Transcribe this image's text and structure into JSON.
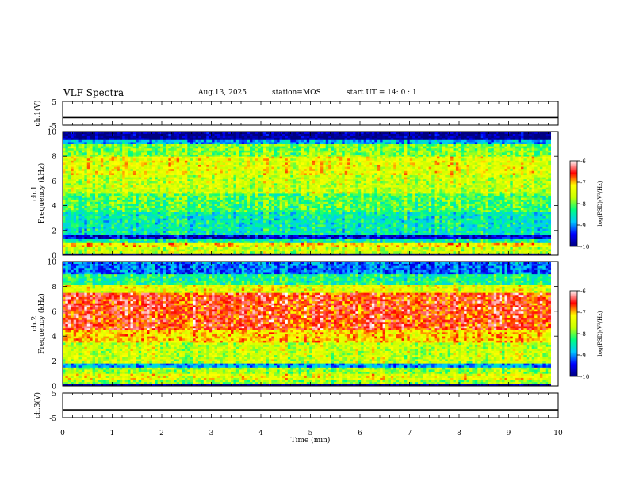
{
  "header": {
    "title": "VLF Spectra",
    "date": "Aug.13, 2025",
    "station": "station=MOS",
    "start": "start  UT =   14: 0  : 1"
  },
  "chart_data": [
    {
      "type": "line",
      "panel": "ch1-voltage",
      "ylabel": "ch.1(V)",
      "ylim": [
        -5,
        5
      ],
      "yticks": [
        "5",
        "-5"
      ],
      "x": [
        0,
        10
      ],
      "values": [
        -1.8,
        -1.8
      ],
      "series_color": "#000000"
    },
    {
      "type": "heatmap",
      "panel": "ch1-spectrogram",
      "ylabel_lines": [
        "ch.1",
        "Frequency  (kHz)"
      ],
      "ylim": [
        0,
        10
      ],
      "yticks": [
        "0",
        "2",
        "4",
        "6",
        "8",
        "10"
      ],
      "xlim": [
        0,
        9.85
      ],
      "bands": [
        {
          "f0": 0.0,
          "f1": 0.15,
          "level": -10.0
        },
        {
          "f0": 0.15,
          "f1": 0.6,
          "level": -7.6
        },
        {
          "f0": 0.6,
          "f1": 1.0,
          "level": -7.2
        },
        {
          "f0": 1.0,
          "f1": 1.35,
          "level": -8.4
        },
        {
          "f0": 1.35,
          "f1": 1.75,
          "level": -9.6
        },
        {
          "f0": 1.75,
          "f1": 3.5,
          "level": -8.5
        },
        {
          "f0": 3.5,
          "f1": 5.0,
          "level": -8.1
        },
        {
          "f0": 5.0,
          "f1": 6.5,
          "level": -7.6
        },
        {
          "f0": 6.5,
          "f1": 8.0,
          "level": -7.4
        },
        {
          "f0": 8.0,
          "f1": 9.0,
          "level": -7.9
        },
        {
          "f0": 9.0,
          "f1": 9.4,
          "level": -8.9
        },
        {
          "f0": 9.4,
          "f1": 10.0,
          "level": -9.9
        }
      ]
    },
    {
      "type": "heatmap",
      "panel": "ch2-spectrogram",
      "ylabel_lines": [
        "ch.2",
        "Frequency  (kHz)"
      ],
      "ylim": [
        0,
        10
      ],
      "yticks": [
        "0",
        "2",
        "4",
        "6",
        "8",
        "10"
      ],
      "xlim": [
        0,
        9.85
      ],
      "bands": [
        {
          "f0": 0.0,
          "f1": 0.15,
          "level": -10.0
        },
        {
          "f0": 0.15,
          "f1": 0.5,
          "level": -7.8
        },
        {
          "f0": 0.5,
          "f1": 1.0,
          "level": -7.4
        },
        {
          "f0": 1.0,
          "f1": 1.5,
          "level": -7.8
        },
        {
          "f0": 1.5,
          "f1": 1.8,
          "level": -8.9
        },
        {
          "f0": 1.8,
          "f1": 3.5,
          "level": -7.6
        },
        {
          "f0": 3.5,
          "f1": 4.5,
          "level": -7.1
        },
        {
          "f0": 4.5,
          "f1": 7.5,
          "level": -6.6
        },
        {
          "f0": 7.5,
          "f1": 8.2,
          "level": -7.4
        },
        {
          "f0": 8.2,
          "f1": 9.0,
          "level": -8.3
        },
        {
          "f0": 9.0,
          "f1": 10.0,
          "level": -9.1
        }
      ]
    },
    {
      "type": "line",
      "panel": "ch3-voltage",
      "ylabel": "ch.3(V)",
      "ylim": [
        -5,
        5
      ],
      "yticks": [
        "5",
        "-5"
      ],
      "x": [
        0,
        10
      ],
      "values": [
        -1.8,
        -1.8
      ],
      "series_color": "#000000"
    }
  ],
  "colorbar": {
    "label": "log(PSD)(V²/Hz)",
    "range": [
      -10,
      -6
    ],
    "ticks": [
      "-6",
      "-7",
      "-8",
      "-9",
      "-10"
    ],
    "colors": [
      "#000080",
      "#0000ff",
      "#00c8ff",
      "#00ff80",
      "#c8ff00",
      "#ffff00",
      "#ff0000",
      "#ffffff"
    ]
  },
  "xaxis": {
    "label": "Time  (min)",
    "range": [
      0,
      10
    ],
    "ticks": [
      "0",
      "1",
      "2",
      "3",
      "4",
      "5",
      "6",
      "7",
      "8",
      "9",
      "10"
    ]
  }
}
